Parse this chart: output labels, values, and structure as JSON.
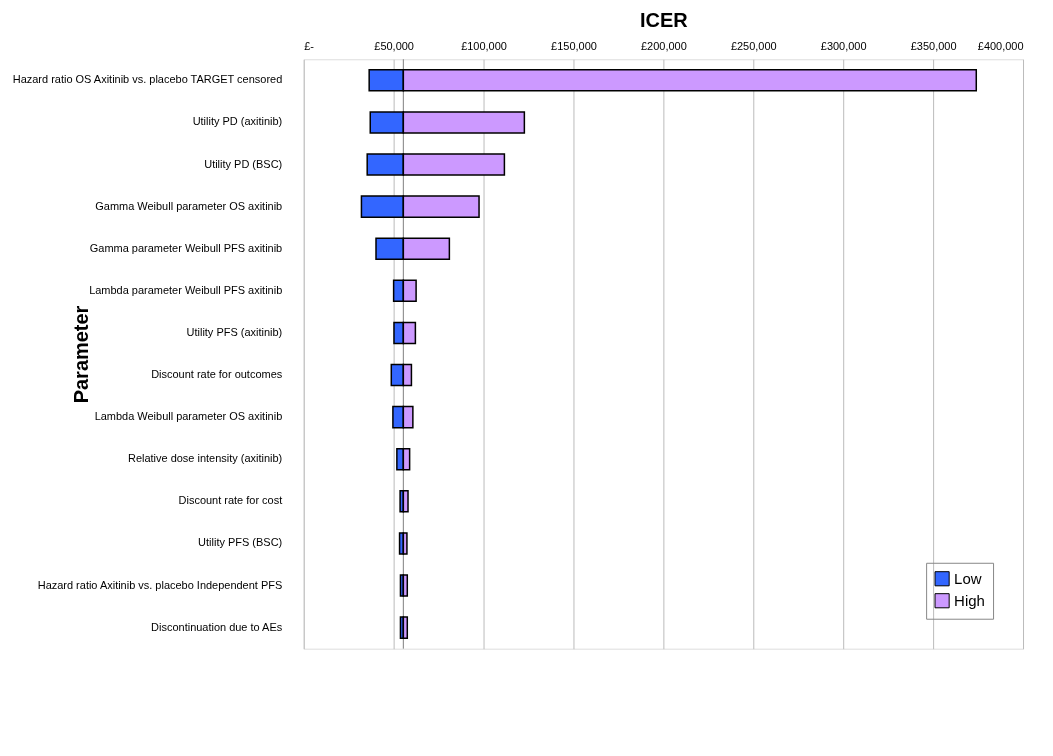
{
  "chart_data": {
    "type": "bar",
    "orientation": "horizontal",
    "xlabel": "ICER",
    "ylabel": "Parameter",
    "categories": [
      "Hazard ratio OS Axitinib vs. placebo TARGET censored",
      "Utility PD (axitinib)",
      "Utility PD (BSC)",
      "Gamma Weibull parameter OS axitinib",
      "Gamma parameter Weibull PFS axitinib",
      "Lambda parameter Weibull PFS axitinib",
      "Utility PFS (axitinib)",
      "Discount rate for outcomes",
      "Lambda Weibull parameter OS axitinib",
      "Relative dose intensity (axitinib)",
      "Discount rate for cost",
      "Utility PFS (BSC)",
      "Hazard ratio Axitinib vs. placebo Independent PFS",
      "Discontinuation due to AEs"
    ],
    "series": [
      {
        "name": "Low",
        "color": "#3366ff",
        "base": [
          36400,
          37000,
          35300,
          32100,
          40200,
          50000,
          50200,
          48700,
          49600,
          51800,
          53600,
          53300,
          53800,
          53800
        ],
        "values": [
          19000,
          18400,
          20100,
          23300,
          15200,
          5400,
          5200,
          6700,
          5800,
          3600,
          1800,
          2100,
          1600,
          1600
        ]
      },
      {
        "name": "High",
        "color": "#cc99ff",
        "base": [
          55400,
          55400,
          55400,
          55400,
          55400,
          55400,
          55400,
          55400,
          55400,
          55400,
          55400,
          55400,
          55400,
          55400
        ],
        "values": [
          318600,
          67300,
          56200,
          42100,
          25600,
          7100,
          6700,
          4500,
          5300,
          3500,
          2600,
          2000,
          2200,
          2200
        ]
      }
    ],
    "xlim": [
      0,
      400000
    ],
    "xticks": [
      {
        "value": 0,
        "label": "£-"
      },
      {
        "value": 50000,
        "label": "£50,000"
      },
      {
        "value": 100000,
        "label": "£100,000"
      },
      {
        "value": 150000,
        "label": "£150,000"
      },
      {
        "value": 200000,
        "label": "£200,000"
      },
      {
        "value": 250000,
        "label": "£250,000"
      },
      {
        "value": 300000,
        "label": "£300,000"
      },
      {
        "value": 350000,
        "label": "£350,000"
      },
      {
        "value": 400000,
        "label": "£400,000"
      }
    ],
    "ref_lines": [
      {
        "axis": "x",
        "value": 55400,
        "color": "#808080"
      }
    ],
    "grid": "x",
    "legend": "bottom right"
  }
}
